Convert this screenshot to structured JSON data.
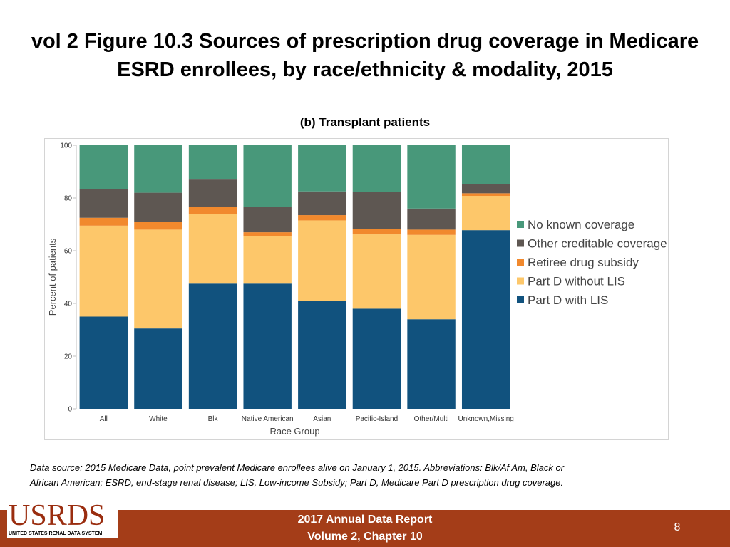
{
  "slide": {
    "title_line1": "vol 2 Figure 10.3 Sources of prescription drug coverage in Medicare",
    "title_line2": "ESRD enrollees, by race/ethnicity & modality, 2015",
    "footnote_line1": "Data source: 2015 Medicare Data, point prevalent Medicare enrollees alive on January 1, 2015. Abbreviations: Blk/Af Am, Black or",
    "footnote_line2": "African American; ESRD, end-stage renal disease; LIS, Low-income Subsidy; Part D, Medicare Part D prescription drug coverage.",
    "footer_line1": "2017 Annual Data Report",
    "footer_line2": "Volume 2, Chapter 10",
    "page_number": "8",
    "logo_text": "USRDS",
    "logo_subtext": "UNITED STATES RENAL DATA SYSTEM"
  },
  "chart_data": {
    "type": "bar",
    "stacked": true,
    "title": "(b) Transplant patients",
    "xlabel": "Race Group",
    "ylabel": "Percent of patients",
    "ylim": [
      0,
      100
    ],
    "yticks": [
      "0",
      "20",
      "40",
      "60",
      "80",
      "100"
    ],
    "grid": false,
    "legend_position": "right",
    "categories": [
      "All",
      "White",
      "Blk",
      "Native American",
      "Asian",
      "Pacific-Island",
      "Other/Multi",
      "Unknown,Missing"
    ],
    "series": [
      {
        "name": "Part D with LIS",
        "color": "#11527e",
        "values": [
          35,
          30.5,
          47.5,
          47.5,
          41,
          38,
          34,
          67.8
        ]
      },
      {
        "name": "Part D without LIS",
        "color": "#fdc76a",
        "values": [
          34.5,
          37.5,
          26.5,
          18,
          30.5,
          28.2,
          32,
          13
        ]
      },
      {
        "name": "Retiree drug subsidy",
        "color": "#f1892d",
        "values": [
          3,
          3,
          2.5,
          1.5,
          2,
          2,
          2,
          1
        ]
      },
      {
        "name": "Other creditable coverage",
        "color": "#5e5752",
        "values": [
          11,
          11,
          10.5,
          9.5,
          9,
          14,
          8,
          3.5
        ]
      },
      {
        "name": "No known coverage",
        "color": "#48987a",
        "values": [
          16.5,
          18,
          13,
          23.5,
          17.5,
          17.8,
          24,
          14.7
        ]
      }
    ]
  }
}
